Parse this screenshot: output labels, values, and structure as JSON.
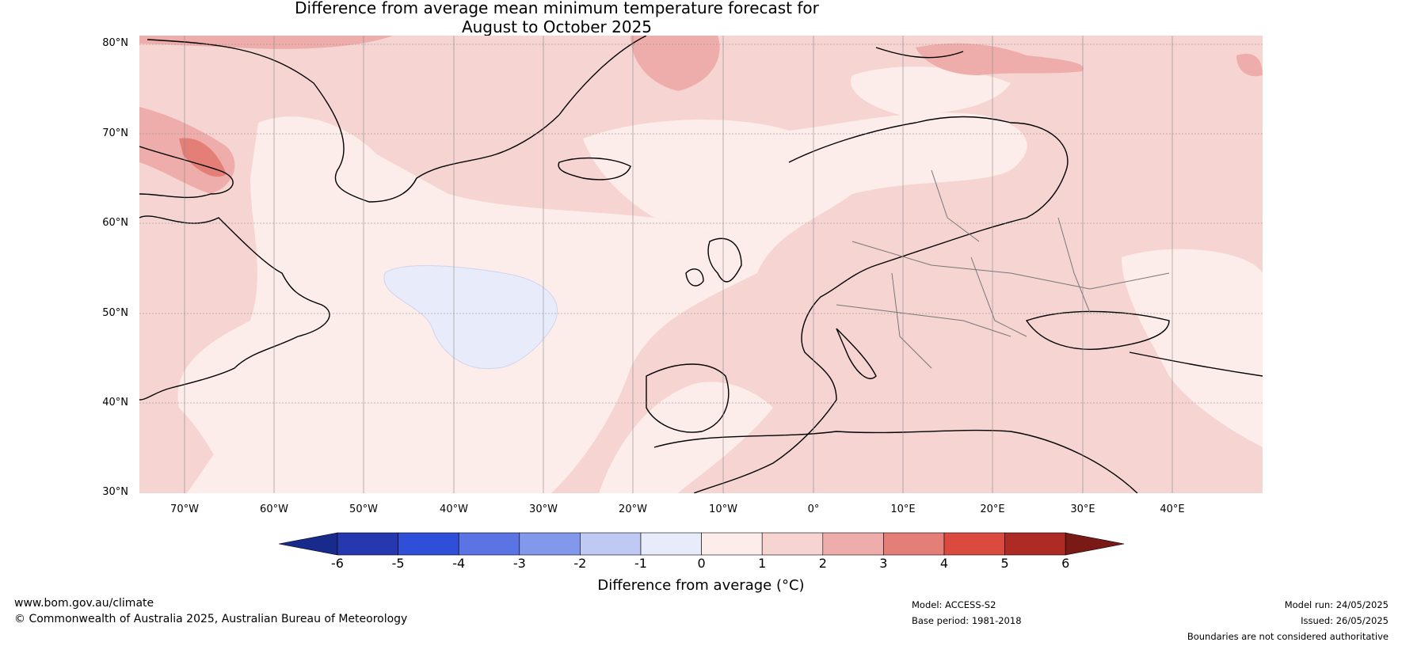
{
  "title_line1": "Difference from average mean minimum temperature forecast for",
  "title_line2": "August to October 2025",
  "lat_labels": [
    "80°N",
    "70°N",
    "60°N",
    "50°N",
    "40°N",
    "30°N"
  ],
  "lon_labels": [
    "70°W",
    "60°W",
    "50°W",
    "40°W",
    "30°W",
    "20°W",
    "10°W",
    "0°",
    "10°E",
    "20°E",
    "30°E",
    "40°E"
  ],
  "colorbar": {
    "label": "Difference from average (°C)",
    "ticks": [
      "-6",
      "-5",
      "-4",
      "-3",
      "-2",
      "-1",
      "0",
      "1",
      "2",
      "3",
      "4",
      "5",
      "6"
    ],
    "colors": [
      "#2538b0",
      "#2f4fd9",
      "#5a74e4",
      "#8198eb",
      "#c0c9f4",
      "#e8ebfa",
      "#fcecea",
      "#f5d4d2",
      "#eeadaa",
      "#e47f78",
      "#db4a3f",
      "#ae2a24"
    ],
    "under_color": "#182a8c",
    "over_color": "#7a1a17"
  },
  "footer": {
    "website": "www.bom.gov.au/climate",
    "copyright": "© Commonwealth of Australia 2025, Australian Bureau of Meteorology",
    "model": "Model: ACCESS-S2",
    "base_period": "Base period: 1981-2018",
    "model_run": "Model run: 24/05/2025",
    "issued": "Issued: 26/05/2025",
    "disclaimer": "Boundaries are not considered authoritative"
  }
}
